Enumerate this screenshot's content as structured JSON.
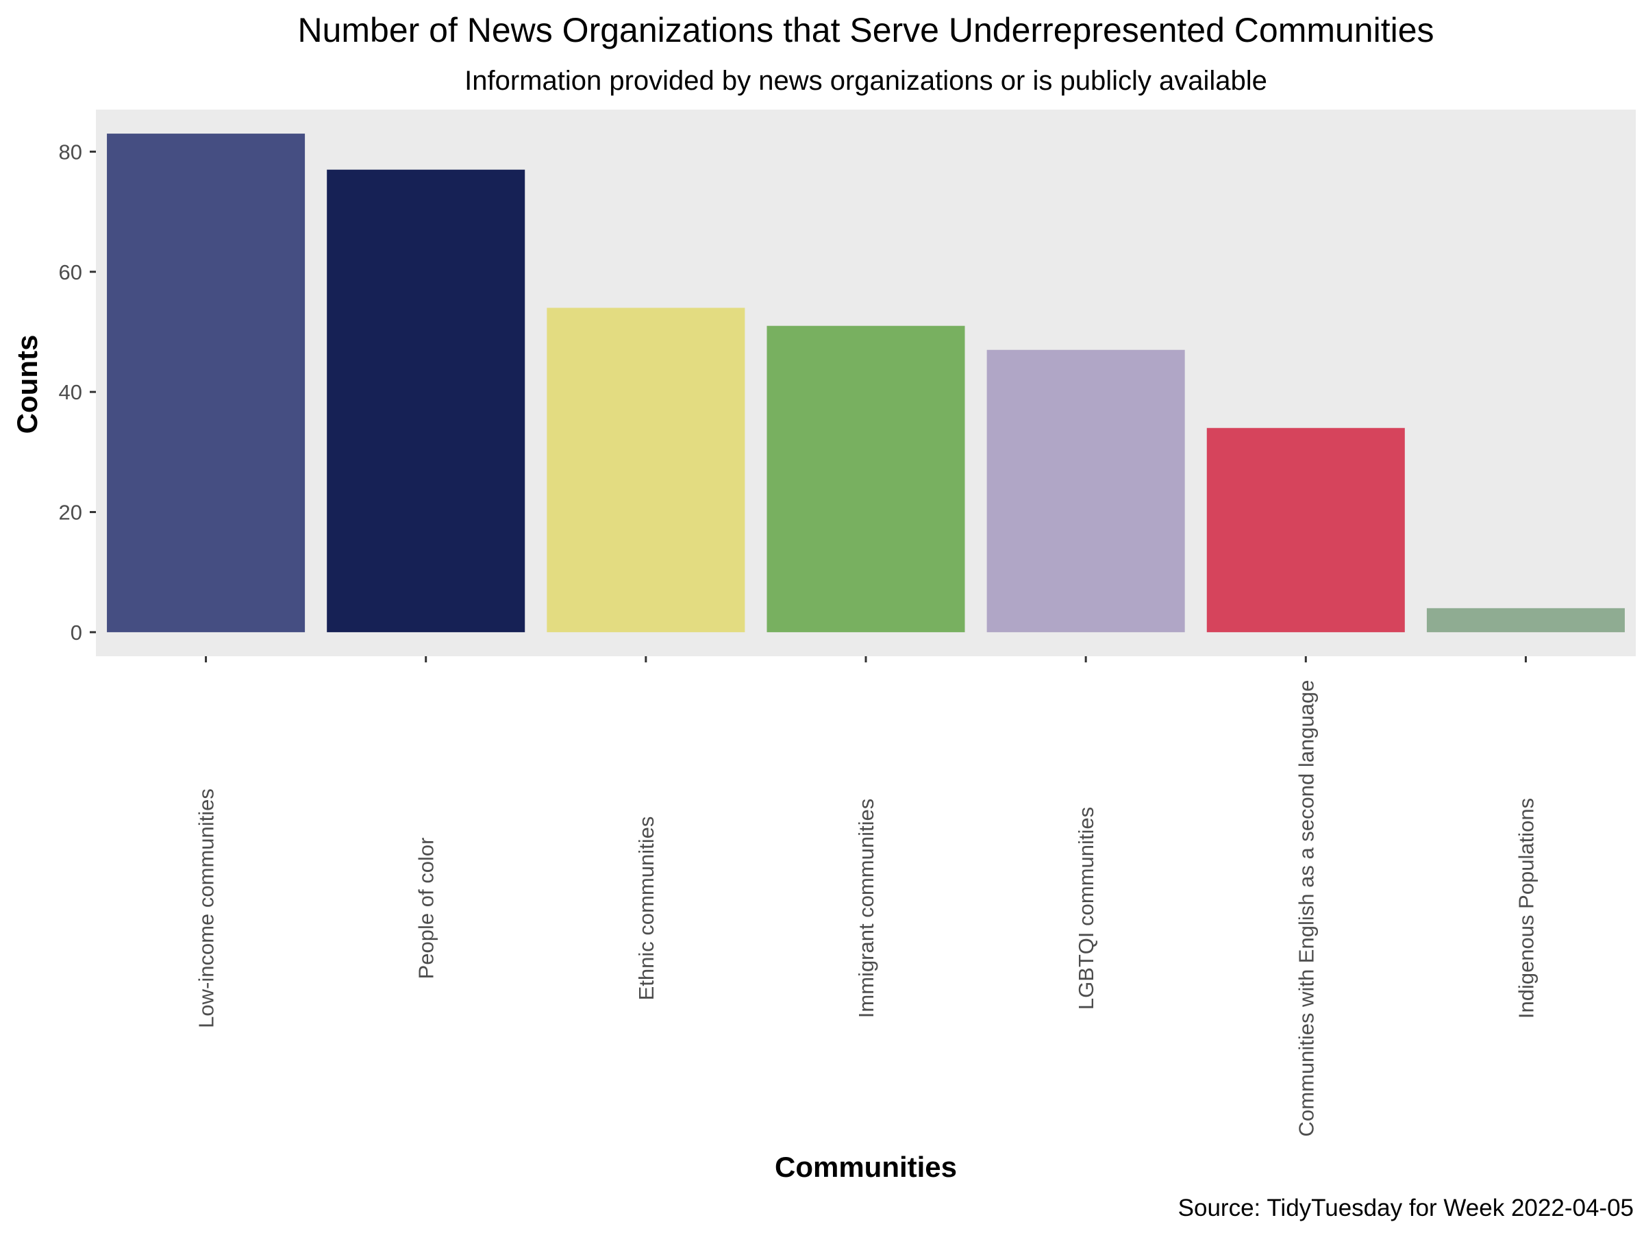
{
  "chart_data": {
    "type": "bar",
    "title": "Number of News Organizations that Serve Underrepresented Communities",
    "subtitle": "Information provided by news organizations or is publicly available",
    "xlabel": "Communities",
    "ylabel": "Counts",
    "caption": "Source: TidyTuesday for Week 2022-04-05",
    "categories": [
      "Low-income communities",
      "People of color",
      "Ethnic communities",
      "Immigrant communities",
      "LGBTQI communities",
      "Communities with English as a second language",
      "Indigenous Populations"
    ],
    "values": [
      83,
      77,
      54,
      51,
      47,
      34,
      4
    ],
    "colors": [
      "#454e82",
      "#162155",
      "#e3dc81",
      "#78b060",
      "#b0a6c6",
      "#d6445c",
      "#8fac92"
    ],
    "ylim": [
      -4,
      87
    ],
    "yticks": [
      0,
      20,
      40,
      60,
      80
    ],
    "panel_background": "#ebebeb",
    "grid": false,
    "legend": "none"
  }
}
